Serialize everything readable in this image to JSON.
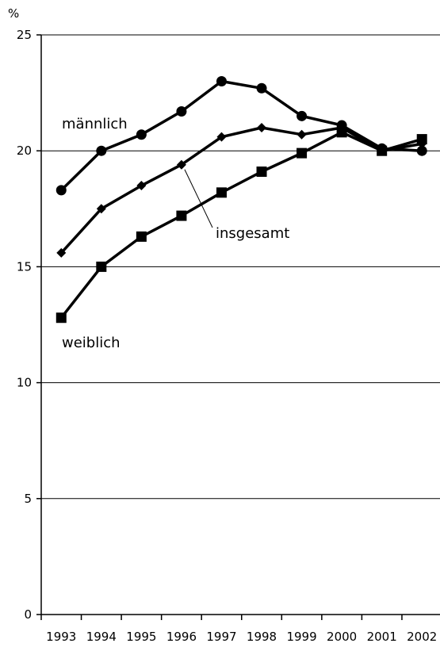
{
  "chart_data": {
    "type": "line",
    "ylabel": "%",
    "ylim": [
      0,
      25
    ],
    "yticks": [
      0,
      5,
      10,
      15,
      20,
      25
    ],
    "grid": true,
    "categories": [
      "1993",
      "1994",
      "1995",
      "1996",
      "1997",
      "1998",
      "1999",
      "2000",
      "2001",
      "2002"
    ],
    "series": [
      {
        "name": "männlich",
        "marker": "circle",
        "values": [
          18.3,
          20.0,
          20.7,
          21.7,
          23.0,
          22.7,
          21.5,
          21.1,
          20.1,
          20.0
        ]
      },
      {
        "name": "insgesamt",
        "marker": "diamond",
        "values": [
          15.6,
          17.5,
          18.5,
          19.4,
          20.6,
          21.0,
          20.7,
          21.0,
          20.0,
          20.3
        ]
      },
      {
        "name": "weiblich",
        "marker": "square",
        "values": [
          12.8,
          15.0,
          16.3,
          17.2,
          18.2,
          19.1,
          19.9,
          20.8,
          20.0,
          20.5
        ]
      }
    ]
  }
}
